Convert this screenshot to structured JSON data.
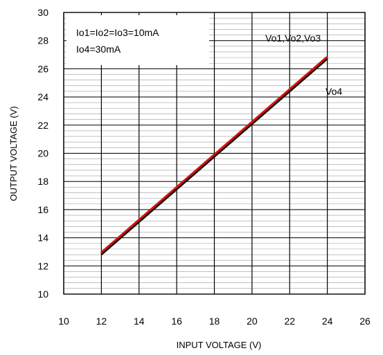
{
  "chart_data": {
    "type": "line",
    "xlabel": "INPUT VOLTAGE (V)",
    "ylabel": "OUTPUT VOLTAGE (V)",
    "xlim": [
      10,
      26
    ],
    "ylim": [
      10,
      30
    ],
    "x_ticks": [
      "10",
      "12",
      "14",
      "16",
      "18",
      "20",
      "22",
      "24",
      "26"
    ],
    "y_ticks": [
      "10",
      "12",
      "14",
      "16",
      "18",
      "20",
      "22",
      "24",
      "26",
      "28",
      "30"
    ],
    "grid": true,
    "annotations": {
      "conditions_line1": "Io1=Io2=Io3=10mA",
      "conditions_line2": "Io4=30mA",
      "label_vo123": "Vo1,Vo2,Vo3",
      "label_vo4": "Vo4"
    },
    "series": [
      {
        "name": "Vo1,Vo2,Vo3",
        "color": "#e01010",
        "x": [
          12,
          24
        ],
        "y": [
          12.9,
          26.8
        ]
      },
      {
        "name": "Vo4",
        "color": "#111111",
        "x": [
          12,
          24
        ],
        "y": [
          12.8,
          26.7
        ]
      }
    ]
  }
}
